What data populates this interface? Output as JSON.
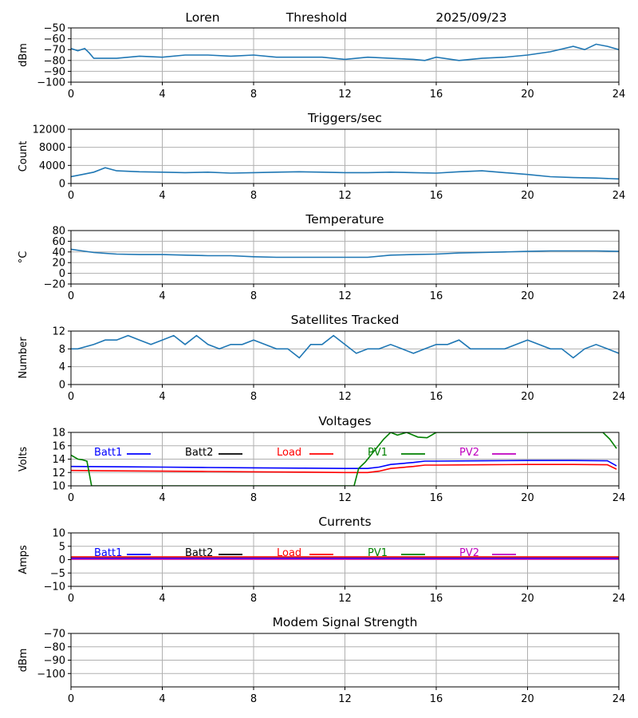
{
  "header": {
    "station": "Loren",
    "mode": "Threshold",
    "date": "2025/09/23"
  },
  "colors": {
    "series": "#1f77b4",
    "batt1": "#0000ff",
    "batt2": "#000000",
    "load": "#ff0000",
    "pv1": "#008000",
    "pv2": "#bf00bf",
    "grid": "#b0b0b0",
    "axis": "#000000"
  },
  "chart_data": [
    {
      "id": "signal",
      "type": "line",
      "title": "",
      "ylabel": "dBm",
      "xlim": [
        0,
        24
      ],
      "xticks": [
        0,
        4,
        8,
        12,
        16,
        20,
        24
      ],
      "ylim": [
        -100,
        -50
      ],
      "yticks": [
        -100,
        -90,
        -80,
        -70,
        -60,
        -50
      ],
      "series": [
        {
          "name": "signal",
          "color": "#1f77b4",
          "x": [
            0,
            0.3,
            0.6,
            0.8,
            1.0,
            1.4,
            2,
            3,
            4,
            5,
            6,
            7,
            8,
            9,
            10,
            11,
            12,
            13,
            14,
            15,
            15.5,
            16,
            17,
            18,
            19,
            20,
            21,
            22,
            22.5,
            23,
            23.5,
            24
          ],
          "y": [
            -69,
            -71,
            -69,
            -73,
            -78,
            -78,
            -78,
            -76,
            -77,
            -75,
            -75,
            -76,
            -75,
            -77,
            -77,
            -77,
            -79,
            -77,
            -78,
            -79,
            -80,
            -77,
            -80,
            -78,
            -77,
            -75,
            -72,
            -67,
            -70,
            -65,
            -67,
            -70
          ]
        }
      ]
    },
    {
      "id": "triggers",
      "type": "line",
      "title": "Triggers/sec",
      "ylabel": "Count",
      "xlim": [
        0,
        24
      ],
      "xticks": [
        0,
        4,
        8,
        12,
        16,
        20,
        24
      ],
      "ylim": [
        0,
        12000
      ],
      "yticks": [
        0,
        4000,
        8000,
        12000
      ],
      "series": [
        {
          "name": "triggers",
          "color": "#1f77b4",
          "x": [
            0,
            0.5,
            1,
            1.5,
            2,
            3,
            4,
            5,
            6,
            7,
            8,
            9,
            10,
            11,
            12,
            13,
            14,
            15,
            16,
            17,
            18,
            19,
            20,
            21,
            22,
            23,
            24
          ],
          "y": [
            1500,
            2000,
            2500,
            3500,
            2800,
            2600,
            2500,
            2400,
            2500,
            2300,
            2400,
            2500,
            2600,
            2500,
            2400,
            2400,
            2500,
            2400,
            2300,
            2600,
            2800,
            2400,
            2000,
            1500,
            1300,
            1200,
            1000
          ]
        }
      ]
    },
    {
      "id": "temperature",
      "type": "line",
      "title": "Temperature",
      "ylabel": "°C",
      "xlim": [
        0,
        24
      ],
      "xticks": [
        0,
        4,
        8,
        12,
        16,
        20,
        24
      ],
      "ylim": [
        -20,
        80
      ],
      "yticks": [
        -20,
        0,
        20,
        40,
        60,
        80
      ],
      "series": [
        {
          "name": "temperature",
          "color": "#1f77b4",
          "x": [
            0,
            0.5,
            1,
            2,
            3,
            4,
            5,
            6,
            7,
            8,
            9,
            10,
            11,
            12,
            13,
            14,
            15,
            16,
            17,
            18,
            19,
            20,
            21,
            22,
            23,
            24
          ],
          "y": [
            45,
            42,
            39,
            36,
            35,
            35,
            34,
            33,
            33,
            31,
            30,
            30,
            30,
            30,
            30,
            34,
            35,
            36,
            38,
            39,
            40,
            41,
            42,
            42,
            42,
            41
          ]
        }
      ]
    },
    {
      "id": "satellites",
      "type": "line",
      "title": "Satellites Tracked",
      "ylabel": "Number",
      "xlim": [
        0,
        24
      ],
      "xticks": [
        0,
        4,
        8,
        12,
        16,
        20,
        24
      ],
      "ylim": [
        0,
        12
      ],
      "yticks": [
        0,
        4,
        8,
        12
      ],
      "series": [
        {
          "name": "satellites",
          "color": "#1f77b4",
          "x": [
            0,
            0.3,
            1,
            1.5,
            2,
            2.5,
            3,
            3.5,
            4,
            4.5,
            5,
            5.5,
            6,
            6.5,
            7,
            7.5,
            8,
            8.5,
            9,
            9.5,
            10,
            10.5,
            11,
            11.5,
            12,
            12.5,
            13,
            13.5,
            14,
            14.5,
            15,
            15.5,
            16,
            16.5,
            17,
            17.5,
            18,
            18.5,
            19,
            19.5,
            20,
            20.5,
            21,
            21.5,
            22,
            22.5,
            23,
            23.5,
            24
          ],
          "y": [
            8,
            8,
            9,
            10,
            10,
            11,
            10,
            9,
            10,
            11,
            9,
            11,
            9,
            8,
            9,
            9,
            10,
            9,
            8,
            8,
            6,
            9,
            9,
            11,
            9,
            7,
            8,
            8,
            9,
            8,
            7,
            8,
            9,
            9,
            10,
            8,
            8,
            8,
            8,
            9,
            10,
            9,
            8,
            8,
            6,
            8,
            9,
            8,
            7
          ]
        }
      ]
    },
    {
      "id": "voltages",
      "type": "line",
      "title": "Voltages",
      "ylabel": "Volts",
      "xlim": [
        0,
        24
      ],
      "xticks": [
        0,
        4,
        8,
        12,
        16,
        20,
        24
      ],
      "ylim": [
        10,
        18
      ],
      "yticks": [
        10,
        12,
        14,
        16,
        18
      ],
      "legend": [
        {
          "label": "Batt1",
          "color": "#0000ff"
        },
        {
          "label": "Batt2",
          "color": "#000000"
        },
        {
          "label": "Load",
          "color": "#ff0000"
        },
        {
          "label": "PV1",
          "color": "#008000"
        },
        {
          "label": "PV2",
          "color": "#bf00bf"
        }
      ],
      "series": [
        {
          "name": "Batt1",
          "color": "#0000ff",
          "x": [
            0,
            2,
            4,
            6,
            8,
            10,
            12,
            13,
            13.5,
            14,
            15,
            15.5,
            16,
            18,
            20,
            22,
            23.5,
            23.9
          ],
          "y": [
            12.9,
            12.85,
            12.8,
            12.75,
            12.7,
            12.65,
            12.6,
            12.6,
            12.8,
            13.2,
            13.5,
            13.7,
            13.7,
            13.75,
            13.8,
            13.8,
            13.75,
            13.0
          ]
        },
        {
          "name": "Load",
          "color": "#ff0000",
          "x": [
            0,
            2,
            4,
            6,
            8,
            10,
            12,
            13,
            13.5,
            14,
            15,
            15.5,
            16,
            18,
            20,
            22,
            23.5,
            23.9
          ],
          "y": [
            12.3,
            12.25,
            12.2,
            12.15,
            12.1,
            12.05,
            12.0,
            12.0,
            12.2,
            12.6,
            12.9,
            13.1,
            13.1,
            13.15,
            13.2,
            13.2,
            13.15,
            12.5
          ]
        },
        {
          "name": "PV1",
          "color": "#008000",
          "x": [
            0,
            0.3,
            0.5,
            0.7,
            0.9,
            12.4,
            12.6,
            12.9,
            13.3,
            13.7,
            14.0,
            14.3,
            14.7,
            15.2,
            15.6,
            16.0,
            23.0,
            23.3,
            23.6,
            23.9
          ],
          "y": [
            14.6,
            14.0,
            13.9,
            13.7,
            10,
            10,
            12.6,
            13.6,
            15.3,
            17.0,
            18,
            17.6,
            18,
            17.3,
            17.2,
            18,
            18,
            18,
            17.0,
            15.6
          ]
        }
      ]
    },
    {
      "id": "currents",
      "type": "line",
      "title": "Currents",
      "ylabel": "Amps",
      "xlim": [
        0,
        24
      ],
      "xticks": [
        0,
        4,
        8,
        12,
        16,
        20,
        24
      ],
      "ylim": [
        -10,
        10
      ],
      "yticks": [
        -10,
        -5,
        0,
        5,
        10
      ],
      "legend": [
        {
          "label": "Batt1",
          "color": "#0000ff"
        },
        {
          "label": "Batt2",
          "color": "#000000"
        },
        {
          "label": "Load",
          "color": "#ff0000"
        },
        {
          "label": "PV1",
          "color": "#008000"
        },
        {
          "label": "PV2",
          "color": "#bf00bf"
        }
      ],
      "series": [
        {
          "name": "Load",
          "color": "#ff0000",
          "x": [
            0,
            24
          ],
          "y": [
            1.0,
            1.0
          ]
        },
        {
          "name": "Batt1",
          "color": "#0000ff",
          "x": [
            0,
            24
          ],
          "y": [
            0.5,
            0.5
          ]
        },
        {
          "name": "PV2",
          "color": "#bf00bf",
          "x": [
            0,
            24
          ],
          "y": [
            0.2,
            0.2
          ]
        }
      ]
    },
    {
      "id": "modem",
      "type": "line",
      "title": "Modem Signal Strength",
      "ylabel": "dBm",
      "xlim": [
        0,
        24
      ],
      "xticks": [
        0,
        4,
        8,
        12,
        16,
        20,
        24
      ],
      "ylim": [
        -110,
        -70
      ],
      "yticks": [
        -100,
        -90,
        -80,
        -70
      ],
      "series": []
    }
  ]
}
